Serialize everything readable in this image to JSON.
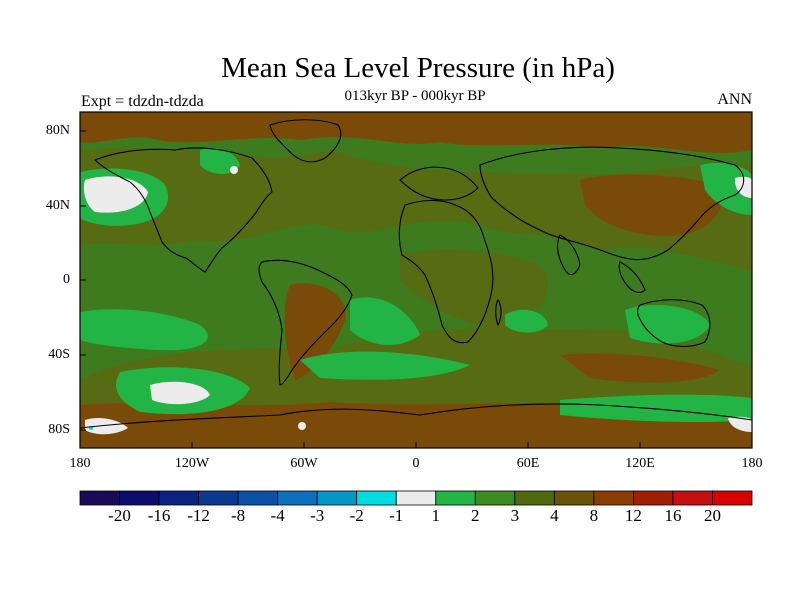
{
  "title": "Mean Sea Level Pressure (in hPa)",
  "subtitle": "013kyr BP - 000kyr BP",
  "experiment": "Expt = tdzdn-tdzda",
  "season": "ANN",
  "lat_labels": [
    "80N",
    "40N",
    "0",
    "40S",
    "80S"
  ],
  "lon_labels": [
    "180",
    "120W",
    "60W",
    "0",
    "60E",
    "120E",
    "180"
  ],
  "colorbar": {
    "labels": [
      "-20",
      "-16",
      "-12",
      "-8",
      "-4",
      "-3",
      "-2",
      "-1",
      "1",
      "2",
      "3",
      "4",
      "8",
      "12",
      "16",
      "20"
    ],
    "colors": [
      "#1a0a5a",
      "#0d0d6e",
      "#082480",
      "#0a3a90",
      "#0b50a5",
      "#0c70bd",
      "#0596c8",
      "#00dde0",
      "#ececec",
      "#22b545",
      "#3c8a22",
      "#506a10",
      "#6a5208",
      "#8a3c05",
      "#a02005",
      "#c41010",
      "#d80000"
    ]
  },
  "map_colors": {
    "ocean_base": "#3e7a1e",
    "olive": "#576b12",
    "brown": "#7a4a08",
    "bright_green": "#22b545",
    "white": "#ececec",
    "cyan": "#00dde0"
  }
}
